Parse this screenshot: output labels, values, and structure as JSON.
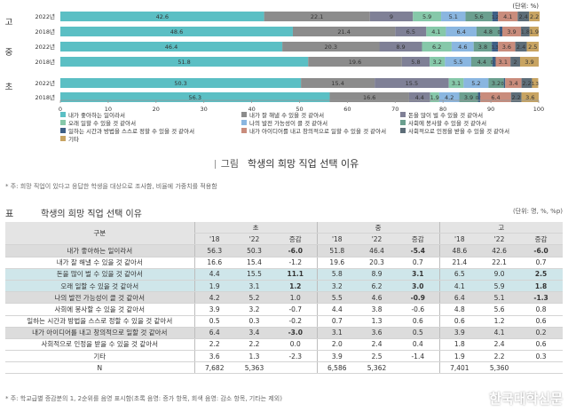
{
  "chart_data": {
    "type": "bar",
    "orientation": "horizontal",
    "stacked": true,
    "unit_label": "(단위: %)",
    "xlim": [
      0,
      100
    ],
    "x_ticks": [
      0,
      10,
      20,
      30,
      40,
      50,
      60,
      70,
      80,
      90,
      100
    ],
    "groups": [
      {
        "label": "고",
        "rows": [
          {
            "year": "2022년",
            "values": [
              42.6,
              22.1,
              9.0,
              5.9,
              5.1,
              5.6,
              1.2,
              4.1,
              2.4,
              2.2
            ],
            "labels": [
              "42.6",
              "22.1",
              "9",
              "5.9",
              "5.1",
              "5.6",
              "1.2",
              "4.1",
              "2.4",
              "2.2"
            ]
          },
          {
            "year": "2018년",
            "values": [
              48.6,
              21.4,
              6.5,
              4.1,
              6.4,
              4.8,
              0.6,
              3.9,
              1.8,
              1.9
            ],
            "labels": [
              "48.6",
              "21.4",
              "6.5",
              "4.1",
              "6.4",
              "4.8",
              "0.6",
              "3.9",
              "1.8",
              "1.9"
            ]
          }
        ]
      },
      {
        "label": "중",
        "rows": [
          {
            "year": "2022년",
            "values": [
              46.4,
              20.3,
              8.9,
              6.2,
              4.6,
              3.8,
              1.3,
              3.6,
              2.4,
              2.5
            ],
            "labels": [
              "46.4",
              "20.3",
              "8.9",
              "6.2",
              "4.6",
              "3.8",
              "1.3",
              "3.6",
              "2.4",
              "2.5"
            ]
          },
          {
            "year": "2018년",
            "values": [
              51.8,
              19.6,
              5.8,
              3.2,
              5.5,
              4.4,
              0.7,
              3.1,
              2.0,
              3.9
            ],
            "labels": [
              "51.8",
              "19.6",
              "5.8",
              "3.2",
              "5.5",
              "4.4",
              "0.7",
              "3.1",
              "2",
              "3.9"
            ]
          }
        ]
      },
      {
        "label": "초",
        "rows": [
          {
            "year": "2022년",
            "values": [
              50.3,
              15.4,
              15.5,
              3.1,
              5.2,
              3.2,
              0.3,
              3.4,
              2.2,
              1.3
            ],
            "labels": [
              "50.3",
              "15.4",
              "15.5",
              "3.1",
              "5.2",
              "3.2",
              "0.3",
              "3.4",
              "2.2",
              "1.3"
            ]
          },
          {
            "year": "2018년",
            "values": [
              56.3,
              16.6,
              4.4,
              1.9,
              4.2,
              3.9,
              0.5,
              6.4,
              2.2,
              3.6
            ],
            "labels": [
              "56.3",
              "16.6",
              "4.4",
              "1.9",
              "4.2",
              "3.9",
              "0.5",
              "6.4",
              "2.2",
              "3.6"
            ]
          }
        ]
      }
    ],
    "series": [
      {
        "name": "내가 좋아하는 일이라서",
        "color": "#5bbfc4"
      },
      {
        "name": "내가 잘 해낼 수 있을 것 같아서",
        "color": "#8c8c8c"
      },
      {
        "name": "돈을 많이 벌 수 있을 것 같아서",
        "color": "#7f8096"
      },
      {
        "name": "오래 일할 수 있을 것 같아서",
        "color": "#86c8a9"
      },
      {
        "name": "나의 발전 가능성이 클 것 같아서",
        "color": "#8ab6e0"
      },
      {
        "name": "사회에 봉사할 수 있을 것 같아서",
        "color": "#6b9f8f"
      },
      {
        "name": "일하는 시간과 방법을 스스로 정할 수 있을 것 같아서",
        "color": "#3d5f86"
      },
      {
        "name": "내가 아이디어를 내고 창의적으로 일할 수 있을 것 같아서",
        "color": "#c98c7c"
      },
      {
        "name": "사회적으로 인정을 받을 수 있을 것 같아서",
        "color": "#5d6d78"
      },
      {
        "name": "기타",
        "color": "#c8a462"
      }
    ]
  },
  "figure": {
    "label": "그림",
    "title": "학생의 희망 직업 선택 이유",
    "note": "* 주: 희망 직업이 있다고 응답한 학생을 대상으로 조사함, 비율에 가중치를 적용함"
  },
  "table": {
    "label": "표",
    "title": "학생의 희망 직업 선택 이유",
    "unit": "(단위: 명, %, %p)",
    "header_category": "구분",
    "levels": [
      "초",
      "중",
      "고"
    ],
    "sub_headers": [
      "'18",
      "'22",
      "증감"
    ],
    "rows": [
      {
        "label": "내가 좋아하는 일이라서",
        "values": [
          "56.3",
          "50.3",
          "-6.0",
          "51.8",
          "46.4",
          "-5.4",
          "48.6",
          "42.6",
          "-6.0"
        ],
        "style": "gray",
        "bold": [
          2,
          5,
          8
        ]
      },
      {
        "label": "내가 잘 해낼 수 있을 것 같아서",
        "values": [
          "16.6",
          "15.4",
          "-1.2",
          "19.6",
          "20.3",
          "0.7",
          "21.4",
          "22.1",
          "0.7"
        ],
        "style": "",
        "bold": []
      },
      {
        "label": "돈을 많이 벌 수 있을 것 같아서",
        "values": [
          "4.4",
          "15.5",
          "11.1",
          "5.8",
          "8.9",
          "3.1",
          "6.5",
          "9.0",
          "2.5"
        ],
        "style": "teal",
        "bold": [
          2,
          5,
          8
        ]
      },
      {
        "label": "오래 일할 수 있을 것 같아서",
        "values": [
          "1.9",
          "3.1",
          "1.2",
          "3.2",
          "6.2",
          "3.0",
          "4.1",
          "5.9",
          "1.8"
        ],
        "style": "teal",
        "bold": [
          2,
          5,
          8
        ]
      },
      {
        "label": "나의 발전 가능성이 클 것 같아서",
        "values": [
          "4.2",
          "5.2",
          "1.0",
          "5.5",
          "4.6",
          "-0.9",
          "6.4",
          "5.1",
          "-1.3"
        ],
        "style": "gray",
        "bold": [
          5,
          8
        ]
      },
      {
        "label": "사회에 봉사할 수 있을 것 같아서",
        "values": [
          "3.9",
          "3.2",
          "-0.7",
          "4.4",
          "3.8",
          "-0.6",
          "4.8",
          "5.6",
          "0.8"
        ],
        "style": "",
        "bold": []
      },
      {
        "label": "일하는 시간과 방법을 스스로 정할 수 있을 것 같아서",
        "values": [
          "0.5",
          "0.3",
          "-0.2",
          "0.7",
          "1.3",
          "0.6",
          "0.6",
          "1.2",
          "0.6"
        ],
        "style": "",
        "bold": []
      },
      {
        "label": "내가 아이디어를 내고 창의적으로 일할 것 같아서",
        "values": [
          "6.4",
          "3.4",
          "-3.0",
          "3.1",
          "3.6",
          "0.5",
          "3.9",
          "4.1",
          "0.2"
        ],
        "style": "gray",
        "bold": [
          2
        ]
      },
      {
        "label": "사회적으로 인정을 받을 수 있을 것 같아서",
        "values": [
          "2.2",
          "2.2",
          "0.0",
          "2.0",
          "2.4",
          "0.4",
          "1.8",
          "2.4",
          "0.6"
        ],
        "style": "",
        "bold": []
      },
      {
        "label": "기타",
        "values": [
          "3.6",
          "1.3",
          "-2.3",
          "3.9",
          "2.5",
          "-1.4",
          "1.9",
          "2.2",
          "0.3"
        ],
        "style": "",
        "bold": []
      },
      {
        "label": "N",
        "values": [
          "7,682",
          "5,363",
          "",
          "6,586",
          "5,362",
          "",
          "7,401",
          "5,360",
          ""
        ],
        "style": "",
        "bold": []
      }
    ],
    "note": "* 주: 학교급별 증감분의 1, 2순위를 음영 표시함(초록 음영: 증가 항목, 회색 음영: 감소 항목, 기타는 제외)"
  },
  "watermark": "한국대학신문"
}
